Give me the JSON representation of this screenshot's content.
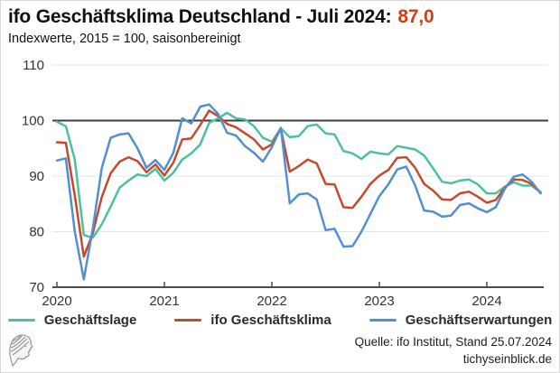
{
  "header": {
    "title_prefix": "ifo Geschäftsklima Deutschland - Juli 2024:",
    "title_value": "87,0",
    "subtitle": "Indexwerte, 2015 = 100, saisonbereinigt"
  },
  "footer": {
    "source": "Quelle: ifo Institut, Stand 25.07.2024",
    "website": "tichyseinblick.de"
  },
  "colors": {
    "accent_value": "#d14115",
    "grid": "#e5e5e5",
    "refline": "#3c3c3c",
    "axis": "#4c4c4c",
    "tick_text": "#333333"
  },
  "chart_data": {
    "type": "line",
    "title": "ifo Geschäftsklima Deutschland - Juli 2024: 87,0",
    "subtitle": "Indexwerte, 2015 = 100, saisonbereinigt",
    "x_start": "2020-01",
    "x_end": "2024-07",
    "frequency": "monthly",
    "x_ticks": [
      "2020",
      "2021",
      "2022",
      "2023",
      "2024"
    ],
    "y_ticks": [
      70,
      80,
      90,
      100,
      110
    ],
    "ylim": [
      70,
      110
    ],
    "refline": 100,
    "grid": true,
    "legend_position": "bottom",
    "series": [
      {
        "key": "geschaeftslage",
        "name": "Geschäftslage",
        "color": "#4ec19a",
        "values": [
          99.8,
          99.0,
          93.0,
          79.4,
          78.9,
          81.3,
          84.5,
          87.9,
          89.2,
          90.3,
          90.0,
          91.3,
          89.2,
          90.6,
          93.0,
          94.1,
          95.7,
          99.6,
          100.4,
          101.4,
          100.4,
          100.2,
          99.0,
          96.9,
          96.2,
          98.6,
          97.0,
          97.2,
          99.0,
          99.3,
          97.7,
          97.5,
          94.5,
          94.1,
          93.1,
          94.4,
          94.1,
          93.9,
          95.4,
          95.1,
          94.8,
          93.7,
          91.4,
          89.0,
          88.7,
          89.2,
          89.4,
          88.5,
          86.9,
          86.9,
          88.1,
          88.9,
          88.3,
          88.3,
          87.1
        ]
      },
      {
        "key": "ifo_geschaeftsklima",
        "name": "ifo Geschäftsklima",
        "color": "#c44a2e",
        "values": [
          96.1,
          96.0,
          86.5,
          75.5,
          79.7,
          86.2,
          90.5,
          92.6,
          93.4,
          92.7,
          90.7,
          92.1,
          90.1,
          92.4,
          96.6,
          96.8,
          99.2,
          101.8,
          100.8,
          99.4,
          98.8,
          97.7,
          96.6,
          94.8,
          95.7,
          98.5,
          90.8,
          91.8,
          93.0,
          92.3,
          88.6,
          88.5,
          84.4,
          84.3,
          86.3,
          88.6,
          90.1,
          91.1,
          93.3,
          93.4,
          91.5,
          88.6,
          87.4,
          85.8,
          85.7,
          86.9,
          87.2,
          86.3,
          85.2,
          85.7,
          87.9,
          89.4,
          89.3,
          88.6,
          87.0
        ]
      },
      {
        "key": "geschaeftserwartungen",
        "name": "Geschäftserwartungen",
        "color": "#548ed3",
        "values": [
          92.8,
          93.2,
          80.0,
          71.4,
          80.5,
          91.4,
          96.9,
          97.5,
          97.7,
          95.0,
          91.5,
          92.9,
          91.1,
          94.2,
          100.4,
          99.5,
          102.5,
          102.9,
          101.2,
          97.8,
          97.3,
          95.4,
          94.2,
          92.6,
          95.2,
          98.7,
          85.1,
          86.7,
          86.9,
          85.8,
          80.3,
          80.5,
          77.3,
          77.4,
          80.0,
          83.2,
          86.4,
          88.5,
          91.2,
          91.7,
          88.3,
          83.8,
          83.6,
          82.7,
          82.9,
          84.8,
          85.1,
          84.2,
          83.5,
          84.4,
          87.7,
          89.9,
          90.3,
          89.0,
          86.9
        ]
      }
    ]
  }
}
